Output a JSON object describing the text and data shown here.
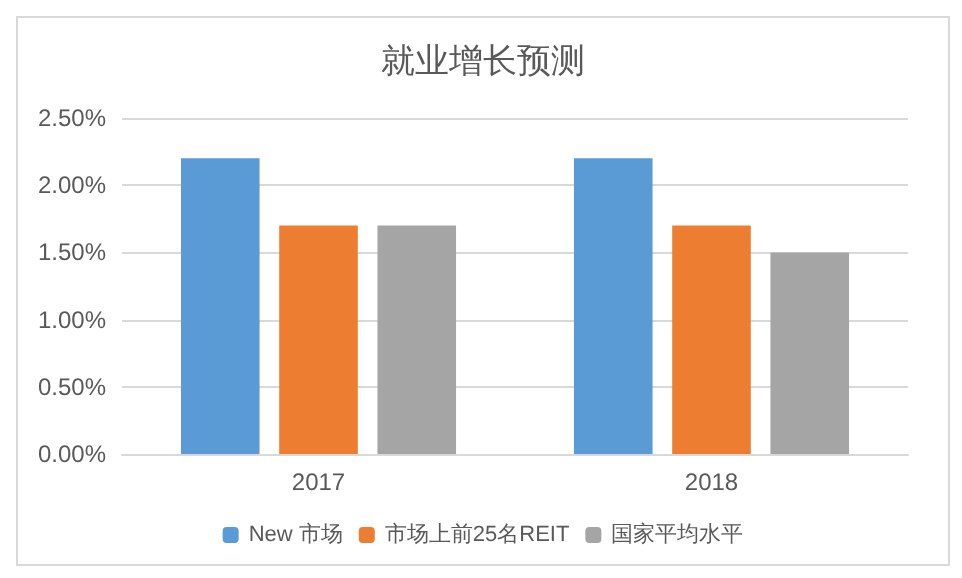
{
  "chart_data": {
    "type": "bar",
    "title": "就业增长预测",
    "categories": [
      "2017",
      "2018"
    ],
    "series": [
      {
        "name": "New 市场",
        "color": "#5b9bd5",
        "values": [
          2.2,
          2.2
        ]
      },
      {
        "name": "市场上前25名REIT",
        "color": "#ed7d31",
        "values": [
          1.7,
          1.7
        ]
      },
      {
        "name": "国家平均水平",
        "color": "#a5a5a5",
        "values": [
          1.7,
          1.5
        ]
      }
    ],
    "ylim": [
      0,
      2.5
    ],
    "yticks": [
      {
        "value": 0,
        "label": "0.00%"
      },
      {
        "value": 0.5,
        "label": "0.50%"
      },
      {
        "value": 1,
        "label": "1.00%"
      },
      {
        "value": 1.5,
        "label": "1.50%"
      },
      {
        "value": 2,
        "label": "2.00%"
      },
      {
        "value": 2.5,
        "label": "2.50%"
      }
    ],
    "grid": "y",
    "legend": "bottom"
  }
}
